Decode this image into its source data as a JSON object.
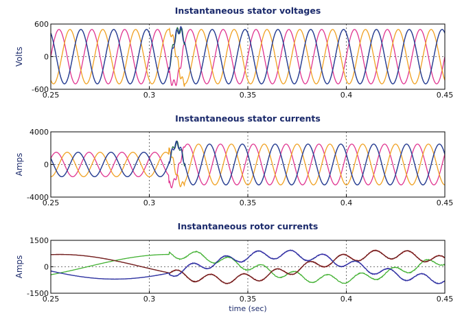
{
  "chart_data": [
    {
      "type": "line",
      "title": "Instantaneous stator voltages",
      "ylabel": "Volts",
      "xlabel": "",
      "xlim": [
        0.25,
        0.45
      ],
      "ylim": [
        -600,
        600
      ],
      "xticks": [
        "0.25",
        "0.3",
        "0.35",
        "0.4",
        "0.45"
      ],
      "yticks": [
        "600",
        "0",
        "-600"
      ],
      "grid": true,
      "waveform": {
        "frequency_hz": 60,
        "amplitude": 500,
        "event_time": 0.31
      },
      "series": [
        {
          "color": "#e0338f",
          "phase_deg": 0
        },
        {
          "color": "#f0a020",
          "phase_deg": -120
        },
        {
          "color": "#1d6b3c",
          "phase_deg": 120
        },
        {
          "color": "#2a3a9c",
          "phase_deg": 120
        }
      ]
    },
    {
      "type": "line",
      "title": "Instantaneous stator currents",
      "ylabel": "Amps",
      "xlabel": "",
      "xlim": [
        0.25,
        0.45
      ],
      "ylim": [
        -4000,
        4000
      ],
      "xticks": [
        "0.25",
        "0.3",
        "0.35",
        "0.4",
        "0.45"
      ],
      "yticks": [
        "4000",
        "0",
        "-4000"
      ],
      "grid": true,
      "waveform": {
        "frequency_hz": 60,
        "amplitude_before": 1500,
        "amplitude_after": 2500,
        "event_time": 0.31
      },
      "series": [
        {
          "color": "#e0338f",
          "phase_deg": 30
        },
        {
          "color": "#f0a020",
          "phase_deg": -90
        },
        {
          "color": "#1d6b3c",
          "phase_deg": 150
        },
        {
          "color": "#2a3a9c",
          "phase_deg": 150
        }
      ]
    },
    {
      "type": "line",
      "title": "Instantaneous rotor currents",
      "ylabel": "Amps",
      "xlabel": "time (sec)",
      "xlim": [
        0.25,
        0.45
      ],
      "ylim": [
        -1500,
        1500
      ],
      "xticks": [
        "0.25",
        "0.3",
        "0.35",
        "0.4",
        "0.45"
      ],
      "yticks": [
        "1500",
        "0",
        "-1500"
      ],
      "grid": true,
      "waveform": {
        "slip_frequency_hz": 6,
        "amplitude": 700,
        "ripple_frequency_hz": 60,
        "ripple_amplitude": 250,
        "event_time": 0.31
      },
      "series": [
        {
          "color": "#8a2be2",
          "phase_deg": 200
        },
        {
          "color": "#d42020",
          "phase_deg": 80
        },
        {
          "color": "#40b030",
          "phase_deg": -40
        },
        {
          "color": "#6b2222",
          "phase_deg": 80
        },
        {
          "color": "#2a3a9c",
          "phase_deg": 200
        }
      ]
    }
  ]
}
